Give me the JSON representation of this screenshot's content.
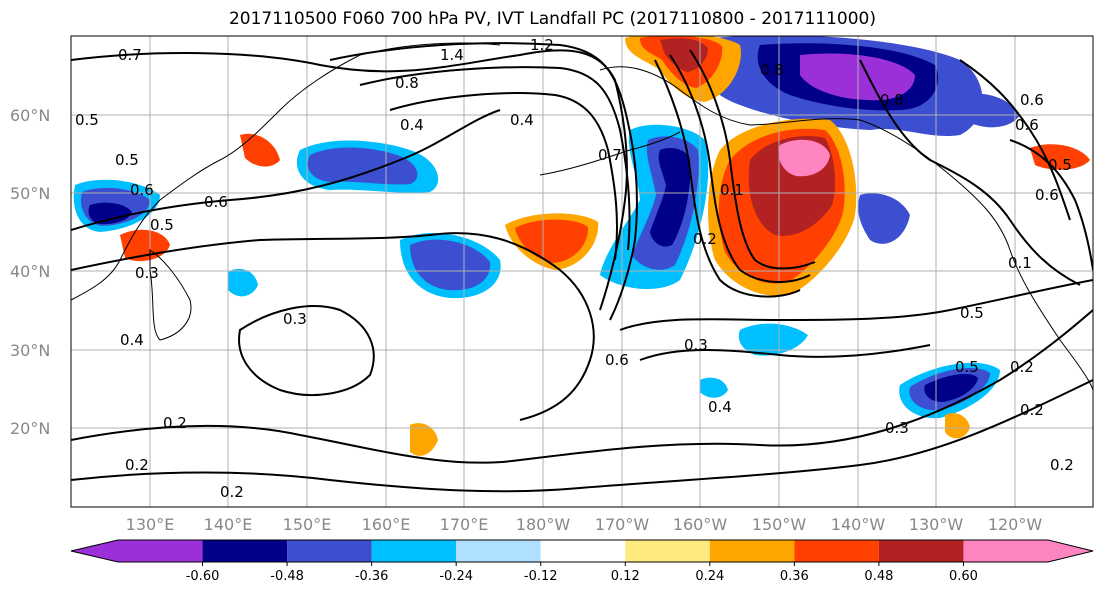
{
  "title": "2017110500 F060 700 hPa PV, IVT Landfall PC (2017110800 - 2017111000)",
  "lat_labels": [
    "60°N",
    "50°N",
    "40°N",
    "30°N",
    "20°N"
  ],
  "lon_labels": [
    "130°E",
    "140°E",
    "150°E",
    "160°E",
    "170°E",
    "180°W",
    "170°W",
    "160°W",
    "150°W",
    "140°W",
    "130°W",
    "120°W"
  ],
  "colorbar": {
    "colors": [
      "#9b30d9",
      "#00008b",
      "#3b4fd0",
      "#00bfff",
      "#afe0ff",
      "#ffffff",
      "#ffea80",
      "#ffa500",
      "#ff4000",
      "#b22222",
      "#ff85c0"
    ],
    "tick_labels": [
      "-0.60",
      "-0.48",
      "-0.36",
      "-0.24",
      "-0.12",
      "0.12",
      "0.24",
      "0.36",
      "0.48",
      "0.60"
    ]
  },
  "contour_labels": [
    "1.4",
    "1.2",
    "0.8",
    "0.4",
    "0.4",
    "0.7",
    "0.5",
    "0.5",
    "0.6",
    "0.6",
    "0.5",
    "0.3",
    "0.4",
    "0.2",
    "0.2",
    "0.3",
    "0.6",
    "0.3",
    "0.4",
    "0.2",
    "0.5",
    "0.3",
    "0.5",
    "0.2",
    "0.2",
    "0.2",
    "0.1",
    "0.6",
    "0.8",
    "0.8",
    "0.6",
    "0.6",
    "0.5",
    "0.7",
    "0.1",
    "0.2"
  ],
  "colors": {
    "grid": "#b0b0b0",
    "axis_label": "#888888"
  }
}
